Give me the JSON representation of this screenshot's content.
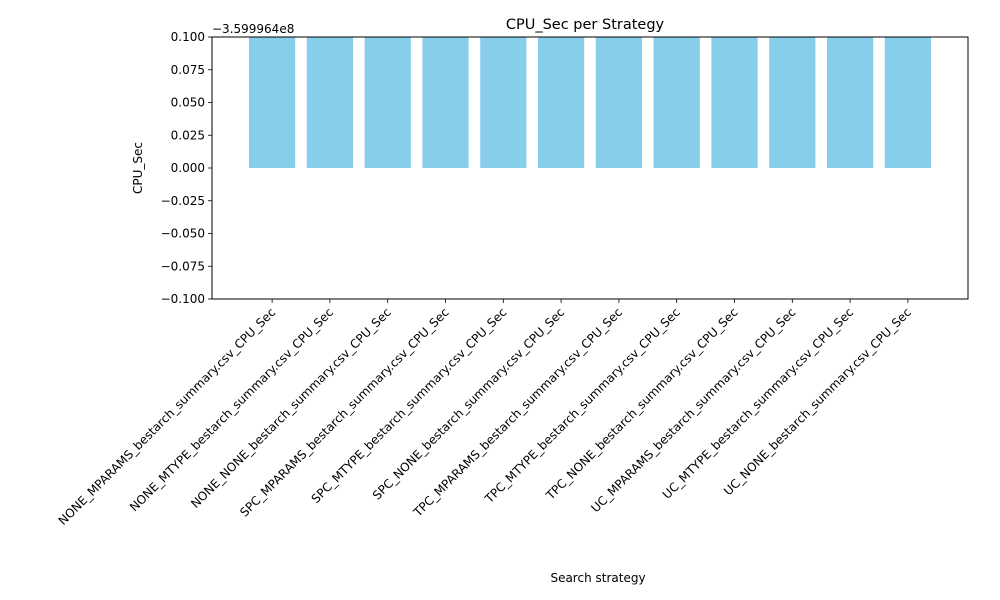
{
  "chart_data": {
    "type": "bar",
    "title": "CPU_Sec per Strategy",
    "xlabel": "Search strategy",
    "ylabel": "CPU_Sec",
    "offset_label": "−3.599964e8",
    "categories": [
      "NONE_MPARAMS_bestarch_summary.csv_CPU_Sec",
      "NONE_MTYPE_bestarch_summary.csv_CPU_Sec",
      "NONE_NONE_bestarch_summary.csv_CPU_Sec",
      "SPC_MPARAMS_bestarch_summary.csv_CPU_Sec",
      "SPC_MTYPE_bestarch_summary.csv_CPU_Sec",
      "SPC_NONE_bestarch_summary.csv_CPU_Sec",
      "TPC_MPARAMS_bestarch_summary.csv_CPU_Sec",
      "TPC_MTYPE_bestarch_summary.csv_CPU_Sec",
      "TPC_NONE_bestarch_summary.csv_CPU_Sec",
      "UC_MPARAMS_bestarch_summary.csv_CPU_Sec",
      "UC_MTYPE_bestarch_summary.csv_CPU_Sec",
      "UC_NONE_bestarch_summary.csv_CPU_Sec"
    ],
    "values": [
      0.1,
      0.1,
      0.1,
      0.1,
      0.1,
      0.1,
      0.1,
      0.1,
      0.1,
      0.1,
      0.1,
      0.1
    ],
    "ylim": [
      -0.1,
      0.1
    ],
    "yticks": [
      -0.1,
      -0.075,
      -0.05,
      -0.025,
      0.0,
      0.025,
      0.05,
      0.075,
      0.1
    ],
    "ytick_labels": [
      "−0.100",
      "−0.075",
      "−0.050",
      "−0.025",
      "0.000",
      "0.025",
      "0.050",
      "0.075",
      "0.100"
    ],
    "bar_color": "#87ceeb",
    "grid": false,
    "legend": "none"
  }
}
